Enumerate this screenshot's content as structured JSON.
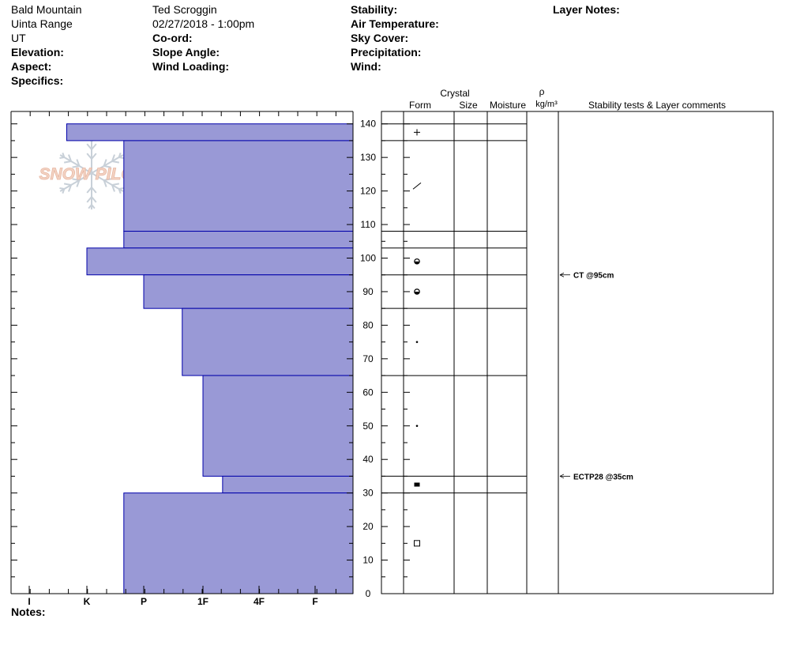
{
  "header": {
    "location": "Bald Mountain",
    "range": "Uinta Range",
    "state": "UT",
    "elevation_label": "Elevation:",
    "aspect_label": "Aspect:",
    "specifics_label": "Specifics:",
    "observer": "Ted Scroggin",
    "datetime": "02/27/2018 - 1:00pm",
    "coord_label": "Co-ord:",
    "slope_label": "Slope Angle:",
    "wind_loading_label": "Wind Loading:",
    "stability_label": "Stability:",
    "air_temp_label": "Air Temperature:",
    "sky_cover_label": "Sky Cover:",
    "precip_label": "Precipitation:",
    "wind_label": "Wind:",
    "layer_notes_label": "Layer Notes:",
    "notes_label": "Notes:"
  },
  "logo": {
    "text": "SNOW PILOT",
    "color": "#f0c8b8",
    "icon": "snowflake-icon"
  },
  "colors": {
    "bar_fill": "#9999d6",
    "bar_edge": "#0000aa"
  },
  "table_headers": {
    "crystal": "Crystal",
    "form": "Form",
    "size": "Size",
    "moisture": "Moisture",
    "rho": "ρ",
    "density_unit": "kg/m³",
    "comments": "Stability tests & Layer comments"
  },
  "chart_data": {
    "type": "bar",
    "orientation": "horizontal",
    "y_range": [
      0,
      143
    ],
    "y_ticks": [
      0,
      10,
      20,
      30,
      40,
      50,
      60,
      70,
      80,
      90,
      100,
      110,
      120,
      130,
      140
    ],
    "hardness_scale": [
      "I",
      "K",
      "P",
      "1F",
      "4F",
      "F"
    ],
    "layers": [
      {
        "bottom": 135,
        "top": 140,
        "hardness": 0.65
      },
      {
        "bottom": 108,
        "top": 135,
        "hardness": 1.65
      },
      {
        "bottom": 103,
        "top": 108,
        "hardness": 1.65
      },
      {
        "bottom": 95,
        "top": 103,
        "hardness": 1.0
      },
      {
        "bottom": 85,
        "top": 95,
        "hardness": 2.0
      },
      {
        "bottom": 65,
        "top": 85,
        "hardness": 2.65
      },
      {
        "bottom": 35,
        "top": 65,
        "hardness": 3.0
      },
      {
        "bottom": 30,
        "top": 35,
        "hardness": 3.35
      },
      {
        "bottom": 0,
        "top": 30,
        "hardness": 1.65
      }
    ],
    "layer_boundaries": [
      140,
      135,
      108,
      103,
      95,
      85,
      65,
      35,
      30
    ],
    "crystal_forms": [
      {
        "depth": 137.5,
        "symbol": "plus"
      },
      {
        "depth": 121.5,
        "symbol": "slash"
      },
      {
        "depth": 99,
        "symbol": "melt"
      },
      {
        "depth": 90,
        "symbol": "melt"
      },
      {
        "depth": 75,
        "symbol": "dot"
      },
      {
        "depth": 50,
        "symbol": "dot"
      },
      {
        "depth": 32.5,
        "symbol": "square-filled"
      },
      {
        "depth": 15,
        "symbol": "square"
      }
    ],
    "stability_tests": [
      {
        "depth": 95,
        "label": "CT @95cm"
      },
      {
        "depth": 35,
        "label": "ECTP28 @35cm"
      }
    ]
  }
}
